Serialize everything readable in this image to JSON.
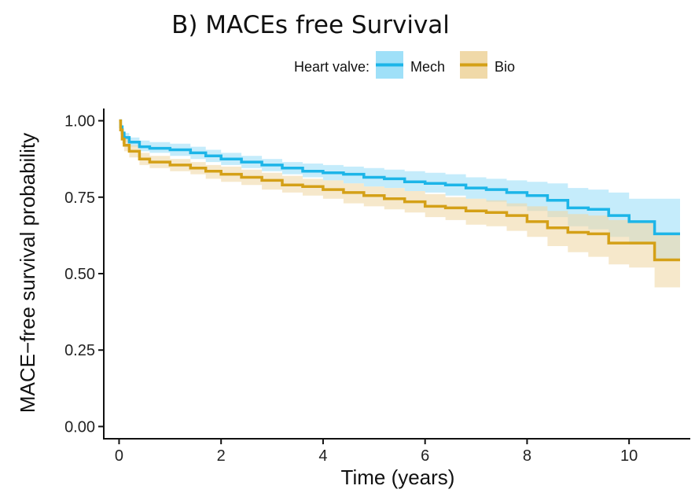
{
  "chart_data": {
    "type": "line",
    "title": "B) MACEs free Survival",
    "xlabel": "Time (years)",
    "ylabel": "MACE−free survival probability",
    "xlim": [
      -0.3,
      11.2
    ],
    "ylim": [
      -0.04,
      1.04
    ],
    "xticks": [
      0,
      2,
      4,
      6,
      8,
      10
    ],
    "yticks": [
      0.0,
      0.25,
      0.5,
      0.75,
      1.0
    ],
    "xtick_labels": [
      "0",
      "2",
      "4",
      "6",
      "8",
      "10"
    ],
    "ytick_labels": [
      "0.00",
      "0.25",
      "0.50",
      "0.75",
      "1.00"
    ],
    "grid": false,
    "legend": {
      "title": "Heart valve:",
      "position": "top",
      "entries": [
        "Mech",
        "Bio"
      ]
    },
    "series": [
      {
        "name": "Mech",
        "color": "#1CB5E8",
        "band_color": "#9FE0F8",
        "step": true,
        "x": [
          0,
          0.03,
          0.06,
          0.1,
          0.2,
          0.4,
          0.6,
          1.0,
          1.4,
          1.7,
          2.0,
          2.4,
          2.8,
          3.2,
          3.6,
          4.0,
          4.4,
          4.8,
          5.2,
          5.6,
          6.0,
          6.4,
          6.8,
          7.2,
          7.6,
          8.0,
          8.4,
          8.8,
          9.2,
          9.6,
          10.0,
          10.5,
          11.0
        ],
        "values": [
          1.0,
          0.98,
          0.96,
          0.945,
          0.93,
          0.915,
          0.91,
          0.905,
          0.895,
          0.885,
          0.875,
          0.865,
          0.855,
          0.845,
          0.835,
          0.83,
          0.825,
          0.815,
          0.81,
          0.8,
          0.795,
          0.79,
          0.78,
          0.775,
          0.765,
          0.755,
          0.74,
          0.715,
          0.71,
          0.69,
          0.67,
          0.63,
          0.63
        ],
        "lower": [
          1.0,
          0.97,
          0.95,
          0.93,
          0.915,
          0.9,
          0.895,
          0.885,
          0.875,
          0.865,
          0.855,
          0.845,
          0.835,
          0.825,
          0.815,
          0.805,
          0.795,
          0.785,
          0.78,
          0.77,
          0.765,
          0.755,
          0.745,
          0.735,
          0.72,
          0.705,
          0.685,
          0.655,
          0.645,
          0.62,
          0.595,
          0.545,
          0.545
        ],
        "upper": [
          1.0,
          0.99,
          0.975,
          0.96,
          0.945,
          0.935,
          0.93,
          0.925,
          0.915,
          0.905,
          0.895,
          0.885,
          0.875,
          0.865,
          0.86,
          0.855,
          0.85,
          0.845,
          0.84,
          0.835,
          0.83,
          0.825,
          0.815,
          0.81,
          0.805,
          0.8,
          0.795,
          0.78,
          0.775,
          0.765,
          0.745,
          0.745,
          0.745
        ]
      },
      {
        "name": "Bio",
        "color": "#D4A017",
        "band_color": "#F0D9A8",
        "step": true,
        "x": [
          0,
          0.03,
          0.06,
          0.1,
          0.2,
          0.4,
          0.6,
          1.0,
          1.4,
          1.7,
          2.0,
          2.4,
          2.8,
          3.2,
          3.6,
          4.0,
          4.4,
          4.8,
          5.2,
          5.6,
          6.0,
          6.4,
          6.8,
          7.2,
          7.6,
          8.0,
          8.4,
          8.8,
          9.2,
          9.6,
          10.0,
          10.5,
          11.0
        ],
        "values": [
          1.0,
          0.97,
          0.94,
          0.92,
          0.9,
          0.875,
          0.865,
          0.855,
          0.845,
          0.835,
          0.825,
          0.815,
          0.805,
          0.79,
          0.785,
          0.775,
          0.765,
          0.755,
          0.745,
          0.735,
          0.72,
          0.715,
          0.705,
          0.7,
          0.69,
          0.67,
          0.65,
          0.635,
          0.63,
          0.6,
          0.6,
          0.545,
          0.545
        ],
        "lower": [
          1.0,
          0.96,
          0.925,
          0.9,
          0.88,
          0.855,
          0.845,
          0.835,
          0.825,
          0.81,
          0.8,
          0.79,
          0.775,
          0.765,
          0.755,
          0.745,
          0.73,
          0.72,
          0.71,
          0.7,
          0.685,
          0.675,
          0.66,
          0.655,
          0.64,
          0.62,
          0.59,
          0.57,
          0.555,
          0.53,
          0.52,
          0.455,
          0.455
        ],
        "upper": [
          1.0,
          0.98,
          0.955,
          0.94,
          0.92,
          0.895,
          0.885,
          0.875,
          0.865,
          0.855,
          0.85,
          0.84,
          0.83,
          0.82,
          0.81,
          0.805,
          0.795,
          0.785,
          0.78,
          0.77,
          0.76,
          0.75,
          0.745,
          0.74,
          0.73,
          0.72,
          0.705,
          0.695,
          0.69,
          0.675,
          0.67,
          0.635,
          0.635
        ]
      }
    ]
  }
}
